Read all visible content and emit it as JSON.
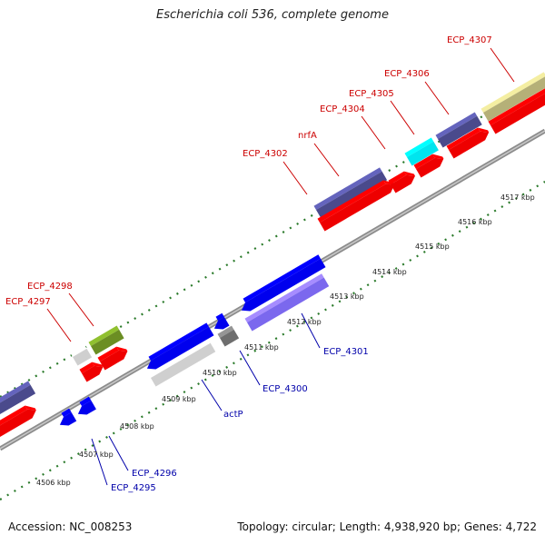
{
  "title": "Escherichia coli 536, complete genome",
  "accession": "Accession: NC_008253",
  "topology": "Topology: circular; Length: 4,938,920 bp; Genes: 4,722",
  "colors": {
    "plus_label": "#cc0000",
    "minus_label": "#0000aa",
    "tick": "#2a7a2a",
    "backbone": "#8c8c8c"
  },
  "tick_labels": [
    "4506 kbp",
    "4507 kbp",
    "4508 kbp",
    "4509 kbp",
    "4510 kbp",
    "4511 kbp",
    "4512 kbp",
    "4513 kbp",
    "4514 kbp",
    "4515 kbp",
    "4516 kbp",
    "4517 kbp"
  ],
  "gene_labels_plus": [
    "ECP_4297",
    "ECP_4298",
    "ECP_4302",
    "nrfA",
    "ECP_4304",
    "ECP_4305",
    "ECP_4306",
    "ECP_4307"
  ],
  "gene_labels_minus": [
    "ECP_4295",
    "ECP_4296",
    "actP",
    "ECP_4300",
    "ECP_4301"
  ]
}
